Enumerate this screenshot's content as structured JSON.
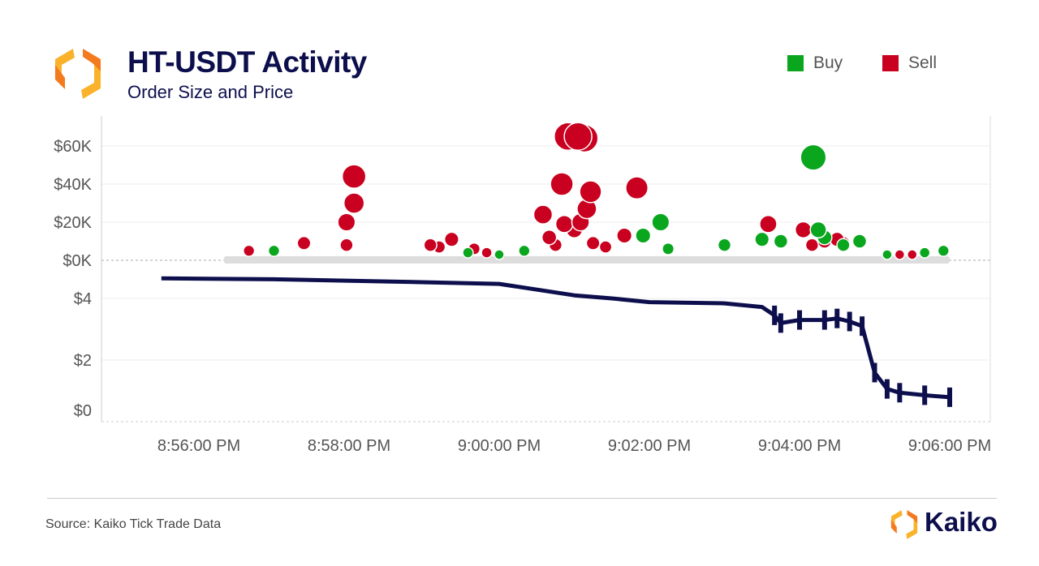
{
  "header": {
    "title": "HT-USDT Activity",
    "subtitle": "Order Size and Price"
  },
  "legend": [
    {
      "label": "Buy",
      "color": "#0aa61e"
    },
    {
      "label": "Sell",
      "color": "#c9001f"
    }
  ],
  "footer": {
    "source": "Source: Kaiko Tick Trade Data",
    "brand": "Kaiko"
  },
  "colors": {
    "title": "#0d0f4d",
    "buy": "#0aa61e",
    "sell": "#c9001f",
    "price_line": "#0d0f4d",
    "small_trades": "#dddddd",
    "logo": "#f7931e"
  },
  "chart_data": [
    {
      "type": "scatter",
      "title": "Order Size",
      "x_ticks": [
        "8:56:00 PM",
        "8:58:00 PM",
        "9:00:00 PM",
        "9:02:00 PM",
        "9:04:00 PM",
        "9:06:00 PM"
      ],
      "y_ticks": [
        {
          "value": 0,
          "label": "$0K"
        },
        {
          "value": 20000,
          "label": "$20K"
        },
        {
          "value": 40000,
          "label": "$40K"
        },
        {
          "value": 60000,
          "label": "$60K"
        }
      ],
      "ylim": [
        0,
        75000
      ],
      "grid": true,
      "legend_position": "top-right",
      "series": [
        {
          "name": "Sell",
          "points": [
            [
              "20:58:04",
              44000
            ],
            [
              "20:58:04",
              30000
            ],
            [
              "20:57:58",
              20000
            ],
            [
              "20:57:58",
              8000
            ],
            [
              "20:57:24",
              9000
            ],
            [
              "20:56:40",
              5000
            ],
            [
              "20:59:05",
              8000
            ],
            [
              "20:59:12",
              7000
            ],
            [
              "20:59:22",
              11000
            ],
            [
              "20:59:40",
              6000
            ],
            [
              "20:59:50",
              4000
            ],
            [
              "21:00:35",
              24000
            ],
            [
              "21:00:50",
              40000
            ],
            [
              "21:00:55",
              65000
            ],
            [
              "21:01:03",
              65000
            ],
            [
              "21:01:08",
              64000
            ],
            [
              "21:00:52",
              19000
            ],
            [
              "21:01:00",
              16000
            ],
            [
              "21:01:05",
              20000
            ],
            [
              "21:01:10",
              27000
            ],
            [
              "21:01:13",
              36000
            ],
            [
              "21:00:40",
              12000
            ],
            [
              "21:00:45",
              8000
            ],
            [
              "21:01:15",
              9000
            ],
            [
              "21:01:25",
              7000
            ],
            [
              "21:01:50",
              38000
            ],
            [
              "21:01:40",
              13000
            ],
            [
              "21:03:35",
              19000
            ],
            [
              "21:04:03",
              16000
            ],
            [
              "21:04:10",
              8000
            ],
            [
              "21:04:20",
              10000
            ],
            [
              "21:04:30",
              11000
            ],
            [
              "21:04:35",
              9000
            ],
            [
              "21:05:20",
              3000
            ],
            [
              "21:05:30",
              3000
            ]
          ]
        },
        {
          "name": "Buy",
          "points": [
            [
              "20:57:00",
              5000
            ],
            [
              "20:59:35",
              4000
            ],
            [
              "21:00:00",
              3000
            ],
            [
              "21:00:20",
              5000
            ],
            [
              "21:02:09",
              20000
            ],
            [
              "21:01:55",
              13000
            ],
            [
              "21:02:15",
              6000
            ],
            [
              "21:03:00",
              8000
            ],
            [
              "21:03:30",
              11000
            ],
            [
              "21:03:45",
              10000
            ],
            [
              "21:04:11",
              54000
            ],
            [
              "21:04:15",
              16000
            ],
            [
              "21:04:20",
              12000
            ],
            [
              "21:04:35",
              8000
            ],
            [
              "21:04:48",
              10000
            ],
            [
              "21:05:10",
              3000
            ],
            [
              "21:05:40",
              4000
            ],
            [
              "21:05:55",
              5000
            ]
          ]
        }
      ],
      "small_trades_range": [
        "20:56:20",
        "21:06:00"
      ]
    },
    {
      "type": "line",
      "title": "Price",
      "y_ticks": [
        {
          "value": 0,
          "label": "$0"
        },
        {
          "value": 2,
          "label": "$2"
        },
        {
          "value": 4,
          "label": "$4"
        }
      ],
      "ylim": [
        0,
        4.8
      ],
      "grid": true,
      "series": [
        {
          "points": [
            [
              "20:55:30",
              4.65
            ],
            [
              "20:57:00",
              4.62
            ],
            [
              "20:58:30",
              4.55
            ],
            [
              "21:00:00",
              4.47
            ],
            [
              "21:01:00",
              4.1
            ],
            [
              "21:01:30",
              4.0
            ],
            [
              "21:02:00",
              3.88
            ],
            [
              "21:03:00",
              3.84
            ],
            [
              "21:03:30",
              3.72
            ],
            [
              "21:03:40",
              3.45
            ],
            [
              "21:03:45",
              3.2
            ],
            [
              "21:04:00",
              3.3
            ],
            [
              "21:04:20",
              3.3
            ],
            [
              "21:04:30",
              3.35
            ],
            [
              "21:04:40",
              3.25
            ],
            [
              "21:04:50",
              3.1
            ],
            [
              "21:05:00",
              1.5
            ],
            [
              "21:05:10",
              0.85
            ],
            [
              "21:05:20",
              0.7
            ],
            [
              "21:05:40",
              0.6
            ],
            [
              "21:06:00",
              0.52
            ]
          ]
        }
      ]
    }
  ]
}
